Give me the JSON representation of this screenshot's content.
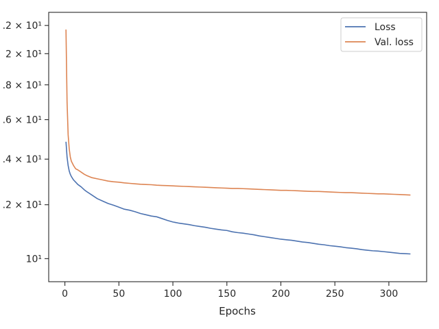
{
  "chart_data": {
    "type": "line",
    "title": "",
    "xlabel": "Epochs",
    "ylabel": "",
    "xlim": [
      -15,
      335
    ],
    "ylim": [
      9.25,
      23.0
    ],
    "yscale": "log",
    "grid": false,
    "legend_position": "top-right",
    "x_ticks": [
      0,
      50,
      100,
      150,
      200,
      250,
      300
    ],
    "x_tick_labels": [
      "0",
      "50",
      "100",
      "150",
      "200",
      "250",
      "300"
    ],
    "y_ticks": [
      10,
      12,
      14,
      16,
      18,
      20,
      22
    ],
    "y_tick_labels": [
      "10¹",
      ".2 × 10¹",
      ".4 × 10¹",
      ".6 × 10¹",
      ".8 × 10¹",
      "2 × 10¹",
      ".2 × 10¹"
    ],
    "series": [
      {
        "name": "Loss",
        "color": "#4c72b0",
        "x": [
          1,
          2,
          3,
          4,
          5,
          6,
          8,
          10,
          12,
          15,
          18,
          20,
          25,
          30,
          35,
          40,
          45,
          50,
          55,
          60,
          65,
          70,
          75,
          80,
          85,
          90,
          95,
          100,
          105,
          110,
          115,
          120,
          125,
          130,
          135,
          140,
          145,
          150,
          155,
          160,
          165,
          170,
          175,
          180,
          185,
          190,
          195,
          200,
          205,
          210,
          215,
          220,
          225,
          230,
          235,
          240,
          245,
          250,
          255,
          260,
          265,
          270,
          275,
          280,
          285,
          290,
          295,
          300,
          305,
          310,
          315,
          320
        ],
        "y": [
          14.85,
          14.1,
          13.7,
          13.45,
          13.3,
          13.2,
          13.05,
          12.95,
          12.85,
          12.75,
          12.62,
          12.55,
          12.4,
          12.25,
          12.15,
          12.05,
          11.98,
          11.9,
          11.82,
          11.78,
          11.72,
          11.65,
          11.6,
          11.55,
          11.52,
          11.45,
          11.38,
          11.32,
          11.28,
          11.25,
          11.22,
          11.18,
          11.15,
          11.12,
          11.08,
          11.05,
          11.02,
          11.0,
          10.95,
          10.92,
          10.9,
          10.87,
          10.84,
          10.8,
          10.77,
          10.74,
          10.71,
          10.68,
          10.66,
          10.64,
          10.61,
          10.58,
          10.56,
          10.53,
          10.5,
          10.48,
          10.45,
          10.43,
          10.41,
          10.38,
          10.36,
          10.34,
          10.31,
          10.29,
          10.27,
          10.26,
          10.24,
          10.22,
          10.2,
          10.18,
          10.17,
          10.16
        ]
      },
      {
        "name": "Val. loss",
        "color": "#dd8452",
        "x": [
          1,
          2,
          3,
          4,
          5,
          6,
          8,
          10,
          12,
          15,
          18,
          20,
          25,
          30,
          35,
          40,
          45,
          50,
          55,
          60,
          65,
          70,
          75,
          80,
          85,
          90,
          95,
          100,
          105,
          110,
          115,
          120,
          125,
          130,
          135,
          140,
          145,
          150,
          155,
          160,
          165,
          170,
          175,
          180,
          185,
          190,
          195,
          200,
          205,
          210,
          215,
          220,
          225,
          230,
          235,
          240,
          245,
          250,
          255,
          260,
          265,
          270,
          275,
          280,
          285,
          290,
          295,
          300,
          305,
          310,
          315,
          320
        ],
        "y": [
          21.7,
          17.0,
          15.2,
          14.5,
          14.1,
          13.9,
          13.7,
          13.55,
          13.5,
          13.4,
          13.3,
          13.25,
          13.15,
          13.1,
          13.05,
          13.0,
          12.97,
          12.95,
          12.92,
          12.9,
          12.88,
          12.86,
          12.85,
          12.84,
          12.82,
          12.81,
          12.8,
          12.79,
          12.78,
          12.77,
          12.76,
          12.75,
          12.74,
          12.73,
          12.72,
          12.71,
          12.7,
          12.69,
          12.68,
          12.68,
          12.67,
          12.66,
          12.65,
          12.64,
          12.63,
          12.62,
          12.61,
          12.6,
          12.6,
          12.59,
          12.58,
          12.57,
          12.56,
          12.55,
          12.55,
          12.54,
          12.53,
          12.52,
          12.51,
          12.5,
          12.5,
          12.49,
          12.48,
          12.47,
          12.46,
          12.45,
          12.45,
          12.44,
          12.43,
          12.42,
          12.41,
          12.4
        ]
      }
    ]
  }
}
